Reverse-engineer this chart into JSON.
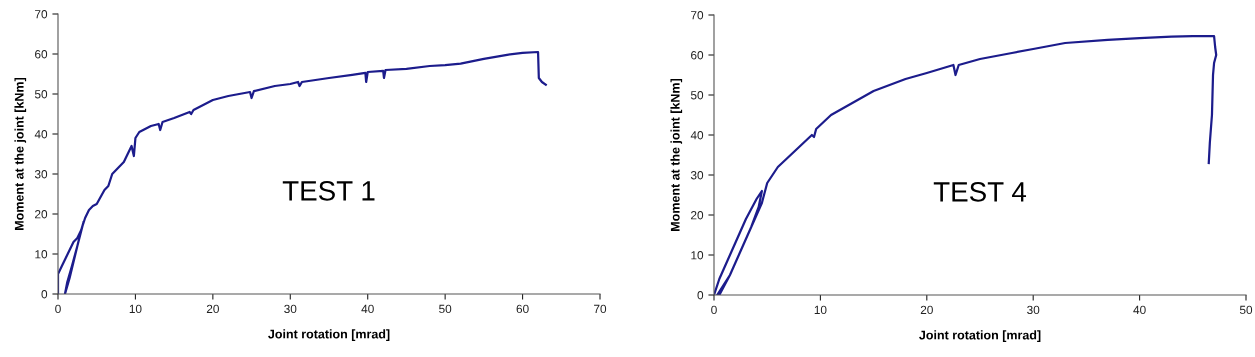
{
  "chart_data": [
    {
      "type": "line",
      "xlabel": "Joint rotation [mrad]",
      "ylabel": "Moment at the joint [kNm]",
      "annotations": [
        "TEST 1"
      ],
      "xlim": [
        0,
        70
      ],
      "ylim": [
        0,
        70
      ],
      "xticks": [
        0,
        10,
        20,
        30,
        40,
        50,
        60,
        70
      ],
      "yticks": [
        0,
        10,
        20,
        30,
        40,
        50,
        60,
        70
      ],
      "grid": false,
      "legend": false,
      "marker": "none",
      "line_style": "solid",
      "series": [
        {
          "color": "#1c1c8c",
          "x": [
            0,
            0,
            0.5,
            1,
            1.5,
            2,
            2.5,
            3,
            3.3,
            2.5,
            1.8,
            1.2,
            0.9,
            1.5,
            2,
            2.5,
            3,
            3.5,
            4,
            4.5,
            5,
            6,
            6.5,
            7,
            7.5,
            8,
            8.5,
            9,
            9.5,
            9.8,
            10,
            10.5,
            11,
            12,
            13,
            13.2,
            13.5,
            15,
            17,
            17.2,
            17.5,
            20,
            22,
            24.8,
            25,
            25.3,
            28,
            30,
            31,
            31.2,
            31.5,
            35,
            38,
            39.7,
            39.8,
            40,
            42,
            42.1,
            42.3,
            45,
            48,
            50,
            52,
            55,
            58,
            60,
            62,
            62.1,
            62.5,
            63
          ],
          "values": [
            0,
            5,
            7,
            9,
            11,
            13,
            14,
            16,
            18,
            12,
            7,
            3,
            0,
            4,
            8,
            12,
            16,
            19,
            21,
            22,
            22.5,
            26,
            27,
            30,
            31,
            32,
            33,
            35,
            37,
            34.5,
            39,
            40.5,
            41,
            42,
            42.5,
            41,
            43,
            44,
            45.5,
            45,
            46,
            48.5,
            49.5,
            50.5,
            49,
            50.7,
            52,
            52.5,
            53,
            52,
            53,
            54,
            54.8,
            55.3,
            53,
            55.5,
            55.8,
            54,
            56,
            56.3,
            57,
            57.2,
            57.6,
            58.8,
            59.8,
            60.3,
            60.5,
            54,
            53,
            52.3
          ]
        }
      ]
    },
    {
      "type": "line",
      "xlabel": "Joint rotation [mrad]",
      "ylabel": "Moment at the joint [kNm]",
      "annotations": [
        "TEST 4"
      ],
      "xlim": [
        0,
        50
      ],
      "ylim": [
        0,
        70
      ],
      "xticks": [
        0,
        10,
        20,
        30,
        40,
        50
      ],
      "yticks": [
        0,
        10,
        20,
        30,
        40,
        50,
        60,
        70
      ],
      "grid": false,
      "legend": false,
      "marker": "none",
      "line_style": "solid",
      "series": [
        {
          "color": "#1c1c8c",
          "x": [
            0,
            0.5,
            1,
            2,
            3,
            4,
            4.5,
            4.2,
            3.5,
            2.5,
            1.5,
            0.5,
            0.3,
            1.5,
            2.5,
            3.5,
            4.5,
            5,
            6,
            8,
            9.2,
            9.4,
            9.6,
            11,
            13,
            15,
            18,
            20,
            22.5,
            22.7,
            23,
            25,
            28,
            30,
            33,
            37,
            40,
            43,
            45,
            47,
            47.1,
            47.2,
            47,
            46.9,
            46.8,
            46.6,
            46.5
          ],
          "values": [
            0,
            4,
            7,
            13,
            19,
            24,
            26,
            22,
            17,
            11,
            5,
            0,
            0,
            5,
            11,
            17,
            23,
            28,
            32,
            37,
            40,
            39.5,
            41.5,
            45,
            48,
            51,
            54,
            55.5,
            57.5,
            55,
            57.5,
            59,
            60.5,
            61.5,
            63,
            63.8,
            64.2,
            64.6,
            64.7,
            64.7,
            62,
            60,
            58,
            55,
            45,
            38,
            33
          ]
        }
      ]
    }
  ]
}
